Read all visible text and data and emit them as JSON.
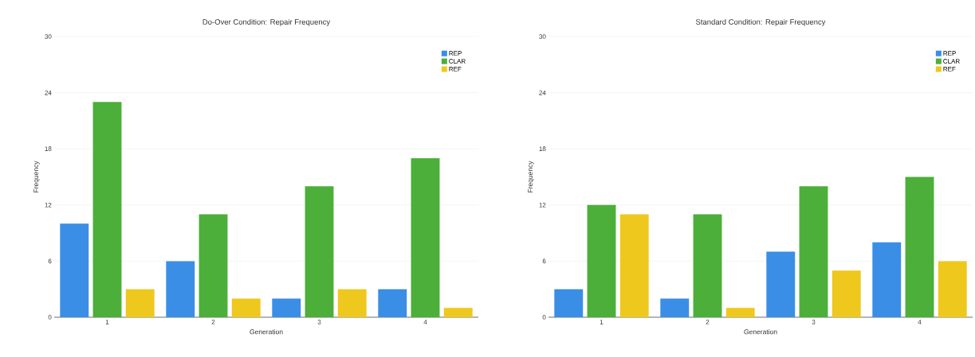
{
  "chart_data": [
    {
      "type": "bar",
      "title": "Do-Over Condition: Repair Frequency",
      "xlabel": "Generation",
      "ylabel": "Frequency",
      "categories": [
        "1",
        "2",
        "3",
        "4"
      ],
      "series": [
        {
          "name": "REP",
          "color": "#3a8ee6",
          "values": [
            10,
            6,
            2,
            3
          ]
        },
        {
          "name": "CLAR",
          "color": "#4caf3a",
          "values": [
            23,
            11,
            14,
            17
          ]
        },
        {
          "name": "REF",
          "color": "#efc81e",
          "values": [
            3,
            2,
            3,
            1
          ]
        }
      ],
      "ylim": [
        0,
        30
      ],
      "yticks": [
        0,
        6,
        12,
        18,
        24,
        30
      ],
      "grid": "y",
      "legend": "top right"
    },
    {
      "type": "bar",
      "title": "Standard Condition: Repair Frequency",
      "xlabel": "Generation",
      "ylabel": "Frequency",
      "categories": [
        "1",
        "2",
        "3",
        "4"
      ],
      "series": [
        {
          "name": "REP",
          "color": "#3a8ee6",
          "values": [
            3,
            2,
            7,
            8
          ]
        },
        {
          "name": "CLAR",
          "color": "#4caf3a",
          "values": [
            12,
            11,
            14,
            15
          ]
        },
        {
          "name": "REF",
          "color": "#efc81e",
          "values": [
            11,
            1,
            5,
            6
          ]
        }
      ],
      "ylim": [
        0,
        30
      ],
      "yticks": [
        0,
        6,
        12,
        18,
        24,
        30
      ],
      "grid": "y",
      "legend": "top right"
    }
  ]
}
